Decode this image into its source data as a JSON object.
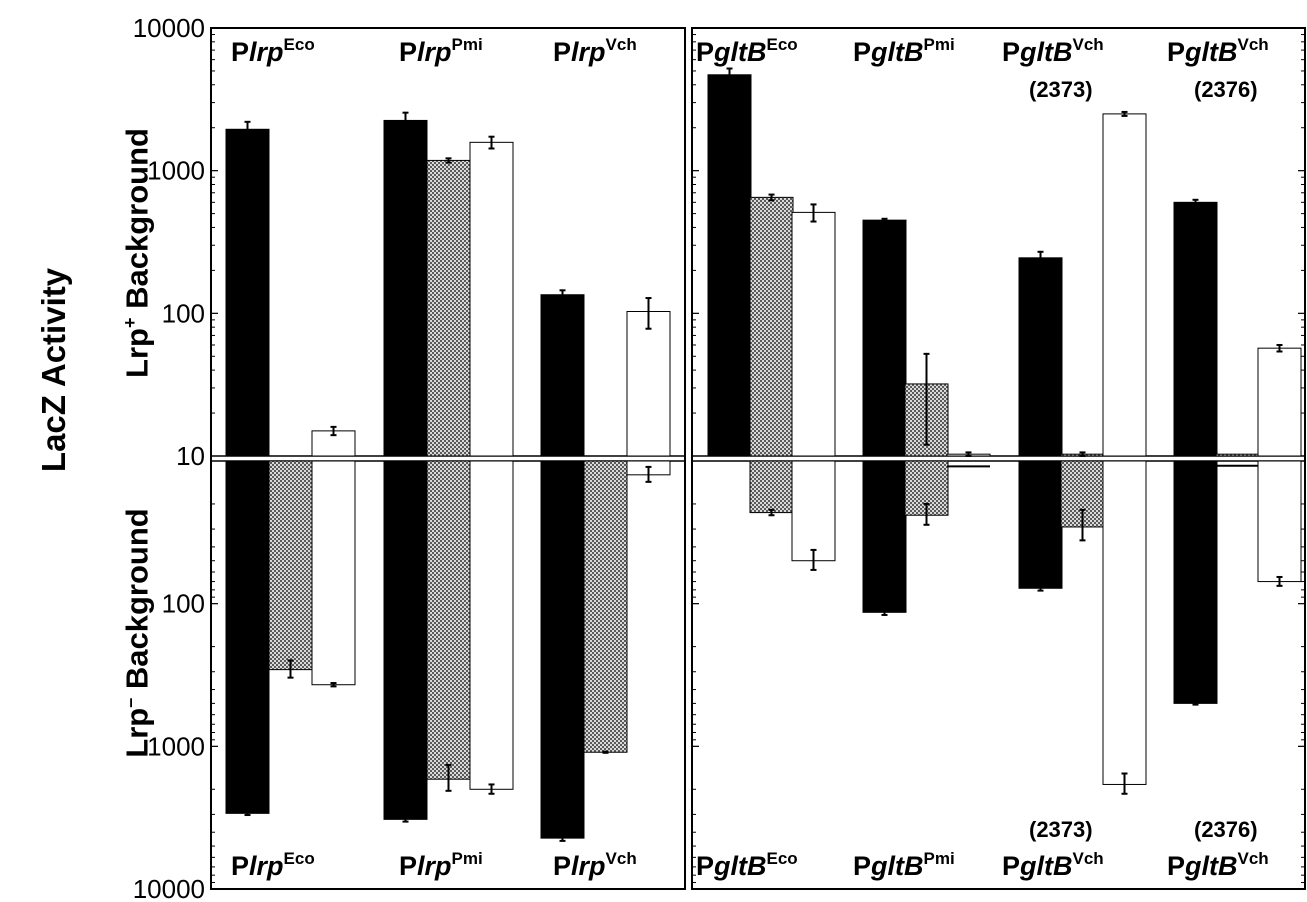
{
  "chart_data": {
    "type": "bar",
    "ylabel": "LacZ Activity",
    "yscale": "log",
    "ylim": [
      10,
      10000
    ],
    "y_ticks_top": [
      "10000",
      "1000",
      "100",
      "10"
    ],
    "y_ticks_bottom": [
      "100",
      "1000",
      "10000"
    ],
    "row_labels": {
      "top": {
        "prefix": "Lrp",
        "sup": "+",
        "suffix": " Background"
      },
      "bottom": {
        "prefix": "Lrp",
        "sup": "–",
        "suffix": " Background"
      }
    },
    "series_colors": [
      "#000000",
      "#a6a6a6",
      "#ffffff"
    ],
    "panels": [
      {
        "groups": [
          {
            "label": {
              "p": "P",
              "gene": "lrp",
              "sup": "Eco"
            },
            "strain": "",
            "top": [
              1950,
              0,
              15
            ],
            "top_err": [
              250,
              0,
              1
            ],
            "bottom": [
              2950,
              290,
              370
            ],
            "bottom_err": [
              80,
              40,
              10
            ]
          },
          {
            "label": {
              "p": "P",
              "gene": "lrp",
              "sup": "Pmi"
            },
            "strain": "",
            "top": [
              2250,
              1180,
              1580
            ],
            "top_err": [
              300,
              40,
              150
            ],
            "bottom": [
              3250,
              1700,
              2000
            ],
            "bottom_err": [
              120,
              350,
              150
            ]
          },
          {
            "label": {
              "p": "P",
              "gene": "lrp",
              "sup": "Vch"
            },
            "strain": "",
            "top": [
              135,
              0,
              103
            ],
            "top_err": [
              10,
              0,
              25
            ],
            "bottom": [
              4400,
              1100,
              12.5
            ],
            "bottom_err": [
              200,
              10,
              1.5
            ]
          }
        ]
      },
      {
        "groups": [
          {
            "label": {
              "p": "P",
              "gene": "gltB",
              "sup": "Eco"
            },
            "strain": "",
            "top": [
              4700,
              650,
              510
            ],
            "top_err": [
              500,
              30,
              70
            ],
            "bottom": [
              0,
              23,
              50
            ],
            "bottom_err": [
              0,
              1,
              8
            ]
          },
          {
            "label": {
              "p": "P",
              "gene": "gltB",
              "sup": "Pmi"
            },
            "strain": "",
            "top": [
              450,
              32,
              10.3
            ],
            "top_err": [
              10,
              20,
              0.3
            ],
            "bottom": [
              115,
              24,
              10.9
            ],
            "bottom_err": [
              5,
              4,
              0.3
            ]
          },
          {
            "label": {
              "p": "P",
              "gene": "gltB",
              "sup": "Vch"
            },
            "strain": "(2373)",
            "top": [
              245,
              10.3,
              2500
            ],
            "top_err": [
              25,
              0.3,
              80
            ],
            "bottom": [
              78,
              29,
              1850
            ],
            "bottom_err": [
              3,
              7,
              300
            ]
          },
          {
            "label": {
              "p": "P",
              "gene": "gltB",
              "sup": "Vch"
            },
            "strain": "(2376)",
            "top": [
              600,
              10.3,
              57
            ],
            "top_err": [
              25,
              0,
              3
            ],
            "bottom": [
              500,
              10.8,
              70
            ],
            "bottom_err": [
              10,
              0,
              5
            ]
          }
        ]
      }
    ]
  }
}
